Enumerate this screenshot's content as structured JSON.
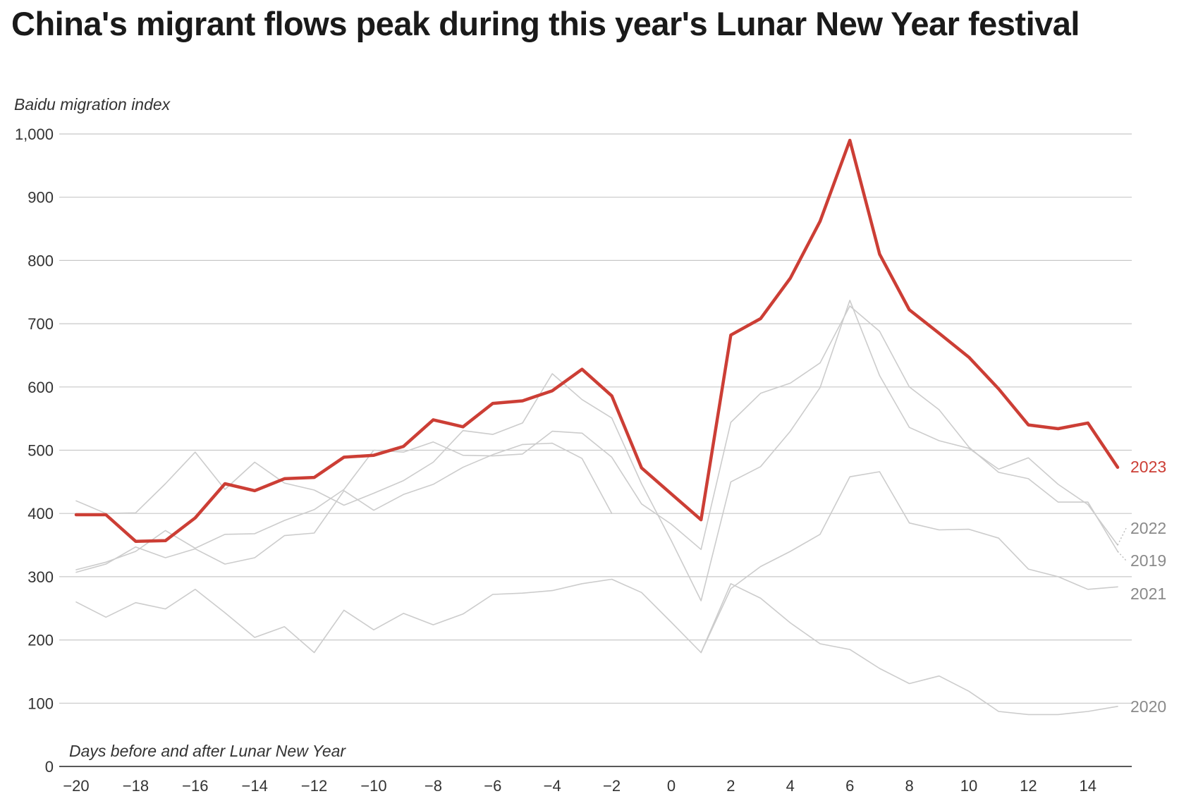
{
  "chart_data": {
    "type": "line",
    "title": "China's migrant flows peak during this year's Lunar New Year festival",
    "ylabel": "Baidu migration index",
    "xlabel": "Days before and after Lunar New Year",
    "ylim": [
      0,
      1000
    ],
    "xlim": [
      -20,
      15
    ],
    "yticks": [
      0,
      100,
      200,
      300,
      400,
      500,
      600,
      700,
      800,
      900,
      1000
    ],
    "ytick_labels": [
      "0",
      "100",
      "200",
      "300",
      "400",
      "500",
      "600",
      "700",
      "800",
      "900",
      "1,000"
    ],
    "xticks": [
      -20,
      -18,
      -16,
      -14,
      -12,
      -10,
      -8,
      -6,
      -4,
      -2,
      0,
      2,
      4,
      6,
      8,
      10,
      12,
      14
    ],
    "xtick_labels": [
      "−20",
      "−18",
      "−16",
      "−14",
      "−12",
      "−10",
      "−8",
      "−6",
      "−4",
      "−2",
      "0",
      "2",
      "4",
      "6",
      "8",
      "10",
      "12",
      "14"
    ],
    "grid": true,
    "colors": {
      "highlight": "#cc3e35",
      "muted": "#cccccc",
      "muted_label": "#8a8a8a"
    },
    "x": [
      -20,
      -19,
      -18,
      -17,
      -16,
      -15,
      -14,
      -13,
      -12,
      -11,
      -10,
      -9,
      -8,
      -7,
      -6,
      -5,
      -4,
      -3,
      -2,
      -1,
      0,
      1,
      2,
      3,
      4,
      5,
      6,
      7,
      8,
      9,
      10,
      11,
      12,
      13,
      14,
      15
    ],
    "series": [
      {
        "name": "2020",
        "highlight": false,
        "values": [
          260,
          236,
          259,
          249,
          280,
          243,
          204,
          221,
          180,
          247,
          216,
          242,
          224,
          241,
          272,
          274,
          278,
          289,
          296,
          275,
          228,
          180,
          289,
          266,
          227,
          194,
          185,
          155,
          131,
          143,
          119,
          87,
          82,
          82,
          87,
          95
        ]
      },
      {
        "name": "2021",
        "highlight": false,
        "values": [
          307,
          320,
          347,
          330,
          344,
          320,
          330,
          365,
          369,
          436,
          405,
          430,
          446,
          473,
          493,
          509,
          511,
          487,
          400,
          null,
          null,
          null,
          null,
          null,
          null,
          null,
          null,
          null,
          null,
          null,
          null,
          null,
          null,
          null,
          null,
          null
        ],
        "values_b": [
          null,
          null,
          null,
          null,
          null,
          null,
          null,
          null,
          null,
          null,
          null,
          null,
          null,
          null,
          null,
          null,
          null,
          null,
          null,
          null,
          null,
          180,
          281,
          316,
          340,
          367,
          458,
          466,
          385,
          374,
          375,
          361,
          312,
          300,
          280,
          284
        ]
      },
      {
        "name": "2019",
        "highlight": false,
        "values": [
          311,
          323,
          340,
          373,
          345,
          367,
          368,
          389,
          406,
          438,
          500,
          497,
          513,
          492,
          491,
          494,
          530,
          527,
          489,
          415,
          383,
          343,
          544,
          590,
          606,
          638,
          728,
          688,
          600,
          564,
          505,
          465,
          455,
          418,
          418,
          340
        ]
      },
      {
        "name": "2022",
        "highlight": false,
        "values": [
          420,
          400,
          401,
          447,
          497,
          438,
          481,
          448,
          437,
          413,
          432,
          452,
          481,
          531,
          525,
          543,
          621,
          580,
          551,
          447,
          357,
          262,
          450,
          474,
          530,
          599,
          737,
          618,
          536,
          515,
          503,
          470,
          488,
          446,
          414,
          350
        ]
      },
      {
        "name": "2023",
        "highlight": true,
        "values": [
          398,
          398,
          356,
          357,
          393,
          447,
          436,
          455,
          457,
          489,
          492,
          506,
          548,
          537,
          574,
          578,
          594,
          628,
          586,
          472,
          431,
          390,
          682,
          708,
          772,
          862,
          990,
          810,
          722,
          685,
          647,
          597,
          540,
          534,
          543,
          473
        ]
      }
    ]
  }
}
